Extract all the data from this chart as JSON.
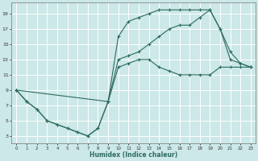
{
  "xlabel": "Humidex (Indice chaleur)",
  "bg_color": "#cce8e8",
  "grid_color": "#ffffff",
  "line_color": "#2d6b5e",
  "xlim": [
    -0.5,
    23.5
  ],
  "ylim": [
    2,
    20.5
  ],
  "xticks": [
    0,
    1,
    2,
    3,
    4,
    5,
    6,
    7,
    8,
    9,
    10,
    11,
    12,
    13,
    14,
    15,
    16,
    17,
    18,
    19,
    20,
    21,
    22,
    23
  ],
  "yticks": [
    3,
    5,
    7,
    9,
    11,
    13,
    15,
    17,
    19
  ],
  "line1_x": [
    0,
    1,
    2,
    3,
    4,
    5,
    6,
    7,
    8,
    9,
    10,
    11,
    12,
    13,
    14,
    15,
    16,
    17,
    18,
    19,
    20,
    21,
    22,
    23
  ],
  "line1_y": [
    9,
    7.5,
    6.5,
    5,
    4.5,
    4,
    3.5,
    3,
    4,
    7.5,
    12,
    12.5,
    13,
    13,
    12,
    11.5,
    11,
    11,
    11,
    11,
    12,
    12,
    12,
    12
  ],
  "line2_x": [
    0,
    1,
    2,
    3,
    4,
    5,
    6,
    7,
    8,
    9,
    10,
    11,
    12,
    13,
    14,
    15,
    16,
    17,
    18,
    19,
    20,
    21,
    22,
    23
  ],
  "line2_y": [
    9,
    7.5,
    6.5,
    5,
    4.5,
    4,
    3.5,
    3,
    4,
    7.5,
    16,
    18,
    18.5,
    19,
    19.5,
    19.5,
    19.5,
    19.5,
    19.5,
    19.5,
    17,
    13,
    12.5,
    12
  ],
  "line3_x": [
    0,
    9,
    10,
    11,
    12,
    13,
    14,
    15,
    16,
    17,
    18,
    19,
    20,
    21,
    22,
    23
  ],
  "line3_y": [
    9,
    7.5,
    13,
    13.5,
    14,
    15,
    16,
    17,
    17.5,
    17.5,
    18.5,
    19.5,
    17,
    14,
    12.5,
    12
  ]
}
